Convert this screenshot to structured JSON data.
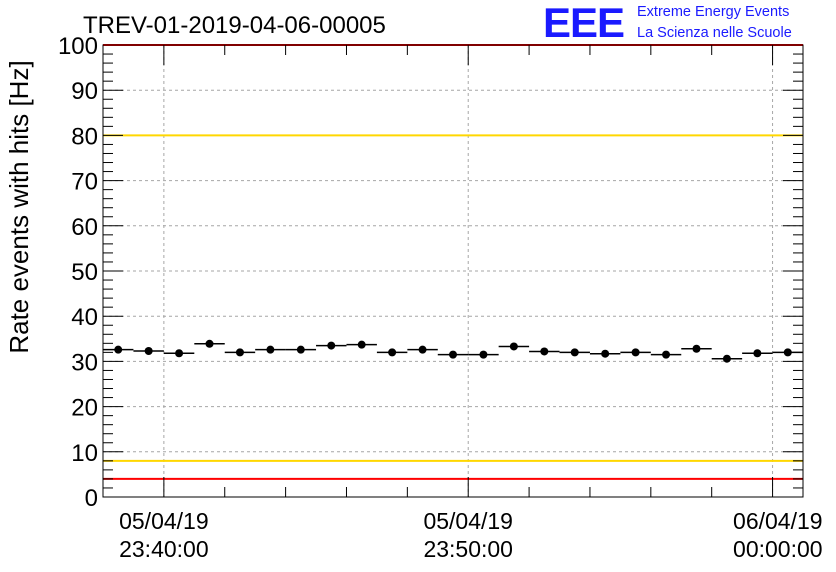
{
  "logo": {
    "mark": "EEE",
    "line1": "Extreme Energy Events",
    "line2": "La Scienza nelle Scuole"
  },
  "chart_data": {
    "type": "scatter",
    "title": "TREV-01-2019-04-06-00005",
    "ylabel": "Rate events with hits [Hz]",
    "xlabel": "",
    "ylim": [
      0,
      100
    ],
    "yticks": [
      0,
      10,
      20,
      30,
      40,
      50,
      60,
      70,
      80,
      90,
      100
    ],
    "xlim": [
      "2019-04-05 23:38:00",
      "2019-04-06 00:01:00"
    ],
    "xticks": [
      {
        "value": "2019-04-05 23:40:00",
        "date": "05/04/19",
        "time": "23:40:00"
      },
      {
        "value": "2019-04-05 23:50:00",
        "date": "05/04/19",
        "time": "23:50:00"
      },
      {
        "value": "2019-04-06 00:00:00",
        "date": "06/04/19",
        "time": "00:00:00"
      }
    ],
    "grid": true,
    "reference_lines": [
      {
        "y": 100,
        "color": "#ff0000"
      },
      {
        "y": 80,
        "color": "#ffd700"
      },
      {
        "y": 8,
        "color": "#ffd700"
      },
      {
        "y": 4,
        "color": "#ff0000"
      }
    ],
    "series": [
      {
        "bin_width_min": 1,
        "x": [
          "2019-04-05 23:38:30",
          "2019-04-05 23:39:30",
          "2019-04-05 23:40:30",
          "2019-04-05 23:41:30",
          "2019-04-05 23:42:30",
          "2019-04-05 23:43:30",
          "2019-04-05 23:44:30",
          "2019-04-05 23:45:30",
          "2019-04-05 23:46:30",
          "2019-04-05 23:47:30",
          "2019-04-05 23:48:30",
          "2019-04-05 23:49:30",
          "2019-04-05 23:50:30",
          "2019-04-05 23:51:30",
          "2019-04-05 23:52:30",
          "2019-04-05 23:53:30",
          "2019-04-05 23:54:30",
          "2019-04-05 23:55:30",
          "2019-04-05 23:56:30",
          "2019-04-05 23:57:30",
          "2019-04-05 23:58:30",
          "2019-04-05 23:59:30",
          "2019-04-06 00:00:30"
        ],
        "y": [
          32.6,
          32.3,
          31.8,
          33.9,
          32.0,
          32.6,
          32.6,
          33.5,
          33.7,
          32.0,
          32.6,
          31.5,
          31.5,
          33.3,
          32.2,
          32.0,
          31.7,
          32.0,
          31.5,
          32.8,
          30.6,
          31.8,
          32.0
        ],
        "color": "#000000"
      }
    ],
    "colors": {
      "red": "#ff0000",
      "yellow": "#ffd700",
      "grid": "#a6a6a6",
      "logo": "#1a1aff"
    }
  }
}
